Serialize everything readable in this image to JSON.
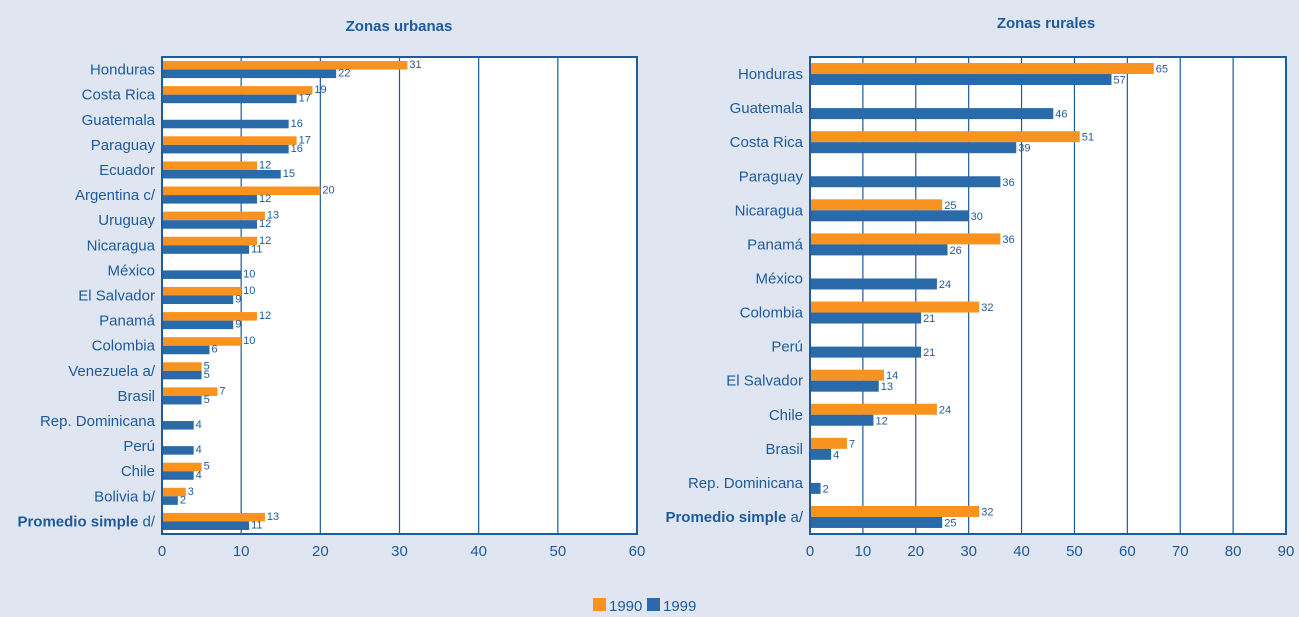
{
  "colors": {
    "s1990": "#f7931e",
    "s1999": "#2a6aa8",
    "frame": "#1f5a9a",
    "plot_bg": "#ffffff",
    "page_bg": "#dfe6f1"
  },
  "legend": [
    "1990",
    "1999"
  ],
  "chart_data": [
    {
      "type": "bar",
      "orientation": "horizontal",
      "title": "Zonas urbanas",
      "xlim": [
        0,
        60
      ],
      "xticks": [
        0,
        10,
        20,
        30,
        40,
        50,
        60
      ],
      "grid": true,
      "legend_position": "bottom-center",
      "categories": [
        {
          "label": "Honduras"
        },
        {
          "label": "Costa Rica"
        },
        {
          "label": "Guatemala"
        },
        {
          "label": "Paraguay"
        },
        {
          "label": "Ecuador"
        },
        {
          "label": "Argentina c/"
        },
        {
          "label": "Uruguay"
        },
        {
          "label": "Nicaragua"
        },
        {
          "label": "México"
        },
        {
          "label": "El Salvador"
        },
        {
          "label": "Panamá"
        },
        {
          "label": "Colombia"
        },
        {
          "label": "Venezuela a/"
        },
        {
          "label": "Brasil"
        },
        {
          "label": "Rep. Dominicana"
        },
        {
          "label": "Perú"
        },
        {
          "label": "Chile"
        },
        {
          "label": "Bolivia b/"
        },
        {
          "label_bold": "Promedio simple",
          "label_rest": " d/"
        }
      ],
      "series": [
        {
          "name": "1990",
          "values": [
            31,
            19,
            null,
            17,
            12,
            20,
            13,
            12,
            null,
            10,
            12,
            10,
            5,
            7,
            null,
            null,
            5,
            3,
            13
          ]
        },
        {
          "name": "1999",
          "values": [
            22,
            17,
            16,
            16,
            15,
            12,
            12,
            11,
            10,
            9,
            9,
            6,
            5,
            5,
            4,
            4,
            4,
            2,
            11
          ]
        }
      ]
    },
    {
      "type": "bar",
      "orientation": "horizontal",
      "title": "Zonas rurales",
      "xlim": [
        0,
        90
      ],
      "xticks": [
        0,
        10,
        20,
        30,
        40,
        50,
        60,
        70,
        80,
        90
      ],
      "grid": true,
      "legend_position": "bottom-center",
      "categories": [
        {
          "label": "Honduras"
        },
        {
          "label": "Guatemala"
        },
        {
          "label": "Costa Rica"
        },
        {
          "label": "Paraguay"
        },
        {
          "label": "Nicaragua"
        },
        {
          "label": "Panamá"
        },
        {
          "label": "México"
        },
        {
          "label": "Colombia"
        },
        {
          "label": "Perú"
        },
        {
          "label": "El Salvador"
        },
        {
          "label": "Chile"
        },
        {
          "label": "Brasil"
        },
        {
          "label": "Rep. Dominicana"
        },
        {
          "label_bold": "Promedio simple",
          "label_rest": " a/"
        }
      ],
      "series": [
        {
          "name": "1990",
          "values": [
            65,
            null,
            51,
            null,
            25,
            36,
            null,
            32,
            null,
            14,
            24,
            7,
            null,
            32
          ]
        },
        {
          "name": "1999",
          "values": [
            57,
            46,
            39,
            36,
            30,
            26,
            24,
            21,
            21,
            13,
            12,
            4,
            2,
            25
          ]
        }
      ]
    }
  ]
}
